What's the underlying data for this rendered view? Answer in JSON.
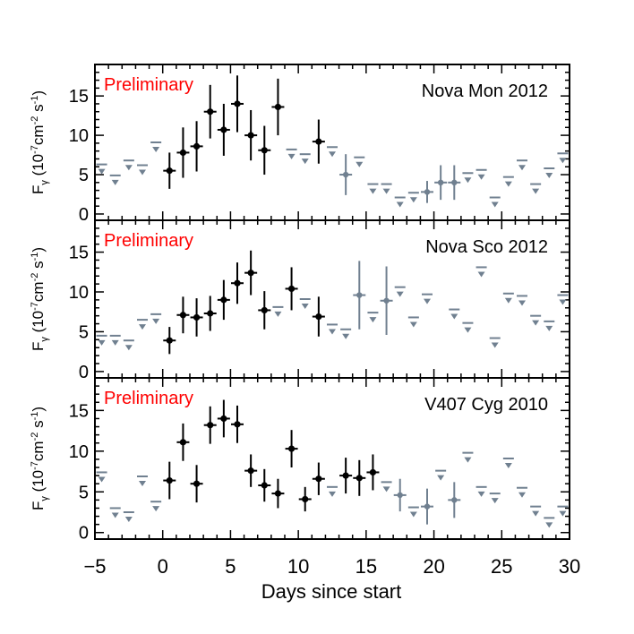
{
  "chart_data": {
    "type": "scatter",
    "shared_x": {
      "xlabel": "Days since start",
      "xlim": [
        -5,
        30
      ],
      "major_ticks": [
        -5,
        0,
        5,
        10,
        15,
        20,
        25,
        30
      ],
      "tick_labels": [
        "−5",
        "0",
        "5",
        "10",
        "15",
        "20",
        "25",
        "30"
      ]
    },
    "ylabel": {
      "main": "F",
      "sub": "γ",
      "open": " (10",
      "exp1": "-7",
      "mid": "cm",
      "exp2": "-2",
      "sep": " s",
      "exp3": "-1",
      "close": ")"
    },
    "watermark": "Preliminary",
    "colors": {
      "detection": "#000000",
      "upper_limit": "#708090",
      "watermark": "#ff0000",
      "axes": "#000000"
    },
    "panels": [
      {
        "title": "Nova Mon 2012",
        "ylim": [
          -0.8,
          19
        ],
        "yticks": [
          0,
          5,
          10,
          15
        ],
        "ytick_labels": [
          "0",
          "5",
          "10",
          "15"
        ],
        "detections": [
          {
            "x": 0.5,
            "y": 5.5,
            "err": 2.3
          },
          {
            "x": 1.5,
            "y": 7.8,
            "err": 3.2
          },
          {
            "x": 2.5,
            "y": 8.6,
            "err": 3.2
          },
          {
            "x": 3.5,
            "y": 13.0,
            "err": 3.4
          },
          {
            "x": 4.5,
            "y": 10.7,
            "err": 3.3
          },
          {
            "x": 5.5,
            "y": 14.0,
            "err": 3.6
          },
          {
            "x": 6.5,
            "y": 10.0,
            "err": 3.2
          },
          {
            "x": 7.5,
            "y": 8.1,
            "err": 3.1
          },
          {
            "x": 8.5,
            "y": 13.6,
            "err": 3.6
          },
          {
            "x": 11.5,
            "y": 9.2,
            "err": 2.8
          }
        ],
        "gray_points": [
          {
            "x": 13.5,
            "y": 5.0,
            "err": 2.6
          },
          {
            "x": 19.5,
            "y": 2.8,
            "err": 1.4
          },
          {
            "x": 20.5,
            "y": 4.0,
            "err": 2.2
          },
          {
            "x": 21.5,
            "y": 4.0,
            "err": 2.2
          }
        ],
        "upper_limits": [
          {
            "x": -4.5,
            "y": 6.3
          },
          {
            "x": -3.5,
            "y": 4.9
          },
          {
            "x": -2.5,
            "y": 6.8
          },
          {
            "x": -1.5,
            "y": 6.2
          },
          {
            "x": -0.5,
            "y": 9.1
          },
          {
            "x": 9.5,
            "y": 8.2
          },
          {
            "x": 10.5,
            "y": 7.6
          },
          {
            "x": 12.5,
            "y": 8.5
          },
          {
            "x": 14.5,
            "y": 7.2
          },
          {
            "x": 15.5,
            "y": 3.8
          },
          {
            "x": 16.5,
            "y": 3.8
          },
          {
            "x": 17.5,
            "y": 2.1
          },
          {
            "x": 18.5,
            "y": 2.7
          },
          {
            "x": 22.5,
            "y": 5.2
          },
          {
            "x": 23.5,
            "y": 5.6
          },
          {
            "x": 24.5,
            "y": 2.1
          },
          {
            "x": 25.5,
            "y": 4.7
          },
          {
            "x": 26.5,
            "y": 6.8
          },
          {
            "x": 27.5,
            "y": 3.8
          },
          {
            "x": 28.5,
            "y": 5.8
          },
          {
            "x": 29.5,
            "y": 7.7
          }
        ]
      },
      {
        "title": "Nova Sco 2012",
        "ylim": [
          -0.8,
          19
        ],
        "yticks": [
          0,
          5,
          10,
          15
        ],
        "ytick_labels": [
          "0",
          "5",
          "10",
          "15"
        ],
        "detections": [
          {
            "x": 0.5,
            "y": 3.9,
            "err": 1.7
          },
          {
            "x": 1.5,
            "y": 7.1,
            "err": 2.3
          },
          {
            "x": 2.5,
            "y": 6.8,
            "err": 2.4
          },
          {
            "x": 3.5,
            "y": 7.3,
            "err": 2.2
          },
          {
            "x": 4.5,
            "y": 9.0,
            "err": 2.5
          },
          {
            "x": 5.5,
            "y": 11.1,
            "err": 2.6
          },
          {
            "x": 6.5,
            "y": 12.4,
            "err": 2.8
          },
          {
            "x": 7.5,
            "y": 7.7,
            "err": 2.4
          },
          {
            "x": 9.5,
            "y": 10.4,
            "err": 2.7
          },
          {
            "x": 11.5,
            "y": 6.9,
            "err": 2.5
          }
        ],
        "gray_points": [
          {
            "x": 14.5,
            "y": 9.6,
            "err": 4.3
          },
          {
            "x": 16.5,
            "y": 8.9,
            "err": 4.3
          }
        ],
        "upper_limits": [
          {
            "x": -4.5,
            "y": 4.5
          },
          {
            "x": -3.5,
            "y": 4.5
          },
          {
            "x": -2.5,
            "y": 3.9
          },
          {
            "x": -1.5,
            "y": 6.5
          },
          {
            "x": -0.5,
            "y": 7.2
          },
          {
            "x": 8.5,
            "y": 8.1
          },
          {
            "x": 10.5,
            "y": 9.1
          },
          {
            "x": 12.5,
            "y": 5.9
          },
          {
            "x": 13.5,
            "y": 5.3
          },
          {
            "x": 15.5,
            "y": 7.4
          },
          {
            "x": 17.5,
            "y": 10.6
          },
          {
            "x": 18.5,
            "y": 6.8
          },
          {
            "x": 19.5,
            "y": 9.7
          },
          {
            "x": 21.5,
            "y": 7.8
          },
          {
            "x": 22.5,
            "y": 6.1
          },
          {
            "x": 23.5,
            "y": 13.1
          },
          {
            "x": 24.5,
            "y": 4.2
          },
          {
            "x": 25.5,
            "y": 9.8
          },
          {
            "x": 26.5,
            "y": 9.5
          },
          {
            "x": 27.5,
            "y": 7.0
          },
          {
            "x": 28.5,
            "y": 6.3
          },
          {
            "x": 29.5,
            "y": 9.6
          }
        ]
      },
      {
        "title": "V407 Cyg 2010",
        "ylim": [
          -0.8,
          19
        ],
        "yticks": [
          0,
          5,
          10,
          15
        ],
        "ytick_labels": [
          "0",
          "5",
          "10",
          "15"
        ],
        "detections": [
          {
            "x": 0.5,
            "y": 6.4,
            "err": 2.3
          },
          {
            "x": 1.5,
            "y": 11.1,
            "err": 2.3
          },
          {
            "x": 2.5,
            "y": 6.0,
            "err": 2.3
          },
          {
            "x": 3.5,
            "y": 13.2,
            "err": 2.3
          },
          {
            "x": 4.5,
            "y": 14.0,
            "err": 2.3
          },
          {
            "x": 5.5,
            "y": 13.3,
            "err": 2.3
          },
          {
            "x": 6.5,
            "y": 7.6,
            "err": 2.0
          },
          {
            "x": 7.5,
            "y": 5.8,
            "err": 2.0
          },
          {
            "x": 8.5,
            "y": 4.8,
            "err": 1.8
          },
          {
            "x": 9.5,
            "y": 10.3,
            "err": 2.3
          },
          {
            "x": 10.5,
            "y": 4.1,
            "err": 1.5
          },
          {
            "x": 11.5,
            "y": 6.6,
            "err": 2.0
          },
          {
            "x": 13.5,
            "y": 7.0,
            "err": 2.2
          },
          {
            "x": 14.5,
            "y": 6.7,
            "err": 2.2
          },
          {
            "x": 15.5,
            "y": 7.4,
            "err": 2.2
          }
        ],
        "gray_points": [
          {
            "x": 17.5,
            "y": 4.6,
            "err": 2.0
          },
          {
            "x": 19.5,
            "y": 3.2,
            "err": 2.2
          },
          {
            "x": 21.5,
            "y": 4.0,
            "err": 2.2
          }
        ],
        "upper_limits": [
          {
            "x": -4.5,
            "y": 7.4
          },
          {
            "x": -3.5,
            "y": 3.0
          },
          {
            "x": -2.5,
            "y": 2.5
          },
          {
            "x": -1.5,
            "y": 6.9
          },
          {
            "x": -0.5,
            "y": 3.8
          },
          {
            "x": 12.5,
            "y": 5.6
          },
          {
            "x": 16.5,
            "y": 6.2
          },
          {
            "x": 18.5,
            "y": 3.1
          },
          {
            "x": 20.5,
            "y": 7.6
          },
          {
            "x": 22.5,
            "y": 9.8
          },
          {
            "x": 23.5,
            "y": 5.6
          },
          {
            "x": 24.5,
            "y": 4.8
          },
          {
            "x": 25.5,
            "y": 9.1
          },
          {
            "x": 26.5,
            "y": 5.5
          },
          {
            "x": 27.5,
            "y": 3.2
          },
          {
            "x": 28.5,
            "y": 1.8
          },
          {
            "x": 29.5,
            "y": 3.2
          }
        ]
      }
    ]
  }
}
